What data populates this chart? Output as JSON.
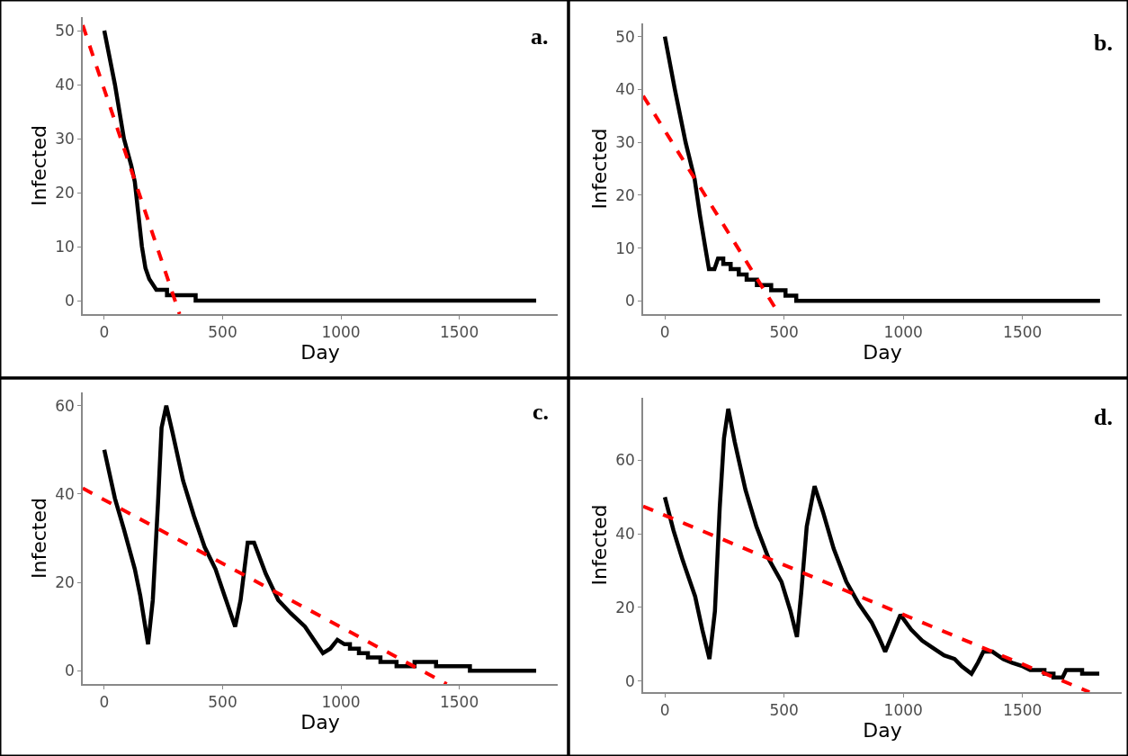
{
  "chart_data": [
    {
      "type": "line",
      "title": "a.",
      "xlabel": "Day",
      "ylabel": "Infected",
      "xlim": [
        -91,
        1916
      ],
      "xticks": [
        0,
        500,
        1000,
        1500
      ],
      "ylim": [
        -2.5,
        52.5
      ],
      "yticks": [
        0,
        10,
        20,
        30,
        40,
        50
      ],
      "series": [
        {
          "color": "#000000",
          "line_style": "solid",
          "x": [
            0,
            45,
            83,
            114,
            129,
            144,
            159,
            174,
            190,
            205,
            220,
            265,
            265,
            386,
            386,
            1825
          ],
          "values": [
            50,
            40,
            30,
            25,
            22,
            16,
            10,
            6,
            4,
            3,
            2,
            2,
            1,
            1,
            0,
            0
          ]
        },
        {
          "color": "#ff0000",
          "line_style": "dashed",
          "x": [
            -91,
            318
          ],
          "values": [
            51,
            -2.5
          ]
        }
      ]
    },
    {
      "type": "line",
      "title": "b.",
      "xlabel": "Day",
      "ylabel": "Infected",
      "xlim": [
        -91,
        1916
      ],
      "xticks": [
        0,
        500,
        1000,
        1500
      ],
      "ylim": [
        -2.5,
        52.5
      ],
      "yticks": [
        0,
        10,
        20,
        30,
        40,
        50
      ],
      "series": [
        {
          "color": "#000000",
          "line_style": "solid",
          "x": [
            0,
            42,
            87,
            125,
            148,
            170,
            185,
            208,
            223,
            245,
            245,
            276,
            276,
            310,
            310,
            343,
            343,
            386,
            386,
            446,
            446,
            506,
            506,
            551,
            551,
            1825
          ],
          "values": [
            50,
            40,
            30,
            23,
            16,
            10,
            6,
            6,
            8,
            8,
            7,
            7,
            6,
            6,
            5,
            5,
            4,
            4,
            3,
            3,
            2,
            2,
            1,
            1,
            0,
            0
          ]
        },
        {
          "color": "#ff0000",
          "line_style": "dashed",
          "x": [
            -91,
            479
          ],
          "values": [
            38.8,
            -2.5
          ]
        }
      ]
    },
    {
      "type": "line",
      "title": "c.",
      "xlabel": "Day",
      "ylabel": "Infected",
      "xlim": [
        -91,
        1916
      ],
      "xticks": [
        0,
        500,
        1000,
        1500
      ],
      "ylim": [
        -3,
        63
      ],
      "yticks": [
        0,
        20,
        40,
        60
      ],
      "series": [
        {
          "color": "#000000",
          "line_style": "solid",
          "x": [
            0,
            45,
            83,
            129,
            152,
            185,
            205,
            227,
            242,
            262,
            288,
            333,
            379,
            424,
            470,
            508,
            553,
            576,
            606,
            633,
            682,
            735,
            788,
            848,
            886,
            924,
            955,
            985,
            1015,
            1038,
            1038,
            1076,
            1076,
            1114,
            1114,
            1167,
            1167,
            1235,
            1235,
            1311,
            1311,
            1402,
            1402,
            1545,
            1545,
            1825
          ],
          "values": [
            50,
            39,
            32,
            23,
            17,
            6,
            16,
            38,
            55,
            60,
            54,
            43,
            35,
            28,
            23,
            17,
            10,
            16,
            29,
            29,
            22,
            16,
            13,
            10,
            7,
            4,
            5,
            7,
            6,
            6,
            5,
            5,
            4,
            4,
            3,
            3,
            2,
            2,
            1,
            1,
            2,
            2,
            1,
            1,
            0,
            0
          ]
        },
        {
          "color": "#ff0000",
          "line_style": "dashed",
          "x": [
            -91,
            1447
          ],
          "values": [
            41.3,
            -3
          ]
        }
      ]
    },
    {
      "type": "line",
      "title": "d.",
      "xlabel": "Day",
      "ylabel": "Infected",
      "xlim": [
        -91,
        1916
      ],
      "xticks": [
        0,
        500,
        1000,
        1500
      ],
      "ylim": [
        -3,
        77
      ],
      "yticks": [
        0,
        20,
        40,
        60
      ],
      "series": [
        {
          "color": "#000000",
          "line_style": "solid",
          "x": [
            0,
            36,
            74,
            127,
            157,
            187,
            210,
            230,
            248,
            266,
            293,
            338,
            384,
            437,
            489,
            527,
            554,
            572,
            595,
            628,
            663,
            708,
            761,
            813,
            867,
            897,
            924,
            950,
            988,
            1033,
            1079,
            1124,
            1171,
            1215,
            1245,
            1286,
            1313,
            1336,
            1374,
            1396,
            1419,
            1456,
            1502,
            1532,
            1592,
            1592,
            1630,
            1630,
            1668,
            1683,
            1750,
            1750,
            1822
          ],
          "values": [
            50,
            41,
            33,
            23,
            14,
            6,
            19,
            47,
            66,
            74,
            65,
            52,
            42,
            33,
            27,
            19,
            12,
            24,
            42,
            53,
            46,
            36,
            27,
            21,
            16,
            12,
            8,
            12,
            18,
            14,
            11,
            9,
            7,
            6,
            4,
            2,
            5,
            8,
            8,
            7,
            6,
            5,
            4,
            3,
            3,
            2,
            2,
            1,
            1,
            3,
            3,
            2,
            2
          ]
        },
        {
          "color": "#ff0000",
          "line_style": "dashed",
          "x": [
            -91,
            1781
          ],
          "values": [
            47.5,
            -3
          ]
        }
      ]
    }
  ]
}
